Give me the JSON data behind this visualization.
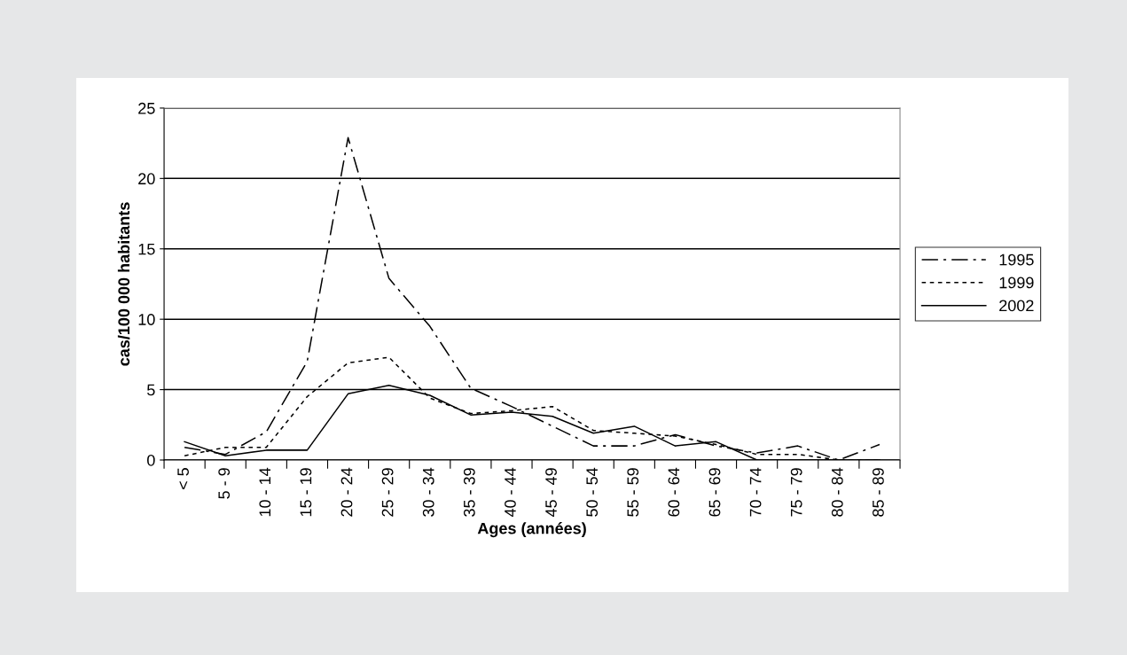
{
  "chart_data": {
    "type": "line",
    "xlabel": "Ages (années)",
    "ylabel": "cas/100 000 habitants",
    "categories": [
      "< 5",
      "5 - 9",
      "10 - 14",
      "15 - 19",
      "20 - 24",
      "25 - 29",
      "30 - 34",
      "35 - 39",
      "40 - 44",
      "45 - 49",
      "50 - 54",
      "55 - 59",
      "60 - 64",
      "65 - 69",
      "70 - 74",
      "75 - 79",
      "80 - 84",
      "85 - 89"
    ],
    "series": [
      {
        "name": "1995",
        "color": "#000000",
        "line_style": "dashdot",
        "values": [
          0.9,
          0.4,
          2.0,
          7.0,
          22.9,
          12.9,
          9.5,
          5.1,
          3.8,
          2.4,
          1.0,
          1.0,
          1.8,
          1.0,
          0.5,
          1.0,
          0.0,
          1.1
        ]
      },
      {
        "name": "1999",
        "color": "#000000",
        "line_style": "dotted",
        "values": [
          0.3,
          0.9,
          0.9,
          4.5,
          6.9,
          7.3,
          4.4,
          3.3,
          3.5,
          3.8,
          2.1,
          1.9,
          1.7,
          1.1,
          0.4,
          0.4,
          0.0,
          0.0
        ]
      },
      {
        "name": "2002",
        "color": "#000000",
        "line_style": "solid",
        "values": [
          1.3,
          0.3,
          0.7,
          0.7,
          4.7,
          5.3,
          4.6,
          3.2,
          3.4,
          3.1,
          1.9,
          2.4,
          1.0,
          1.3,
          0.0,
          0.0,
          0.0,
          0.0
        ]
      }
    ],
    "ylim": [
      0,
      25
    ],
    "yticks": [
      0,
      5,
      10,
      15,
      20,
      25
    ],
    "grid": "y",
    "legend": "right",
    "marker": "none"
  }
}
